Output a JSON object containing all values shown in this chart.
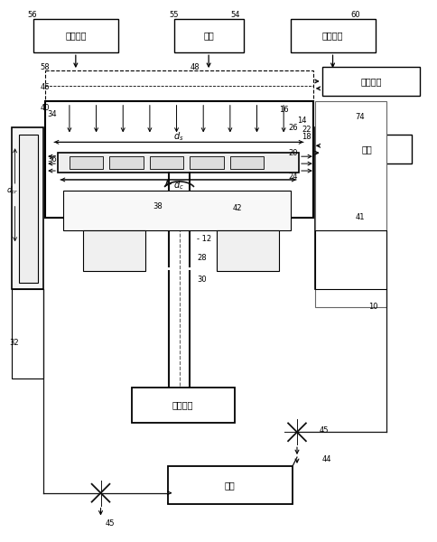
{
  "bg_color": "#ffffff",
  "labels": {
    "fanyingqiti_left": "反应气体",
    "zaiqiti": "载气",
    "fanyingqiti_right": "反应气体",
    "jinqiwendu": "进气温度",
    "biwen": "壁温",
    "xuanzhuanqudong": "旋转驱动",
    "paiqi": "排气"
  }
}
